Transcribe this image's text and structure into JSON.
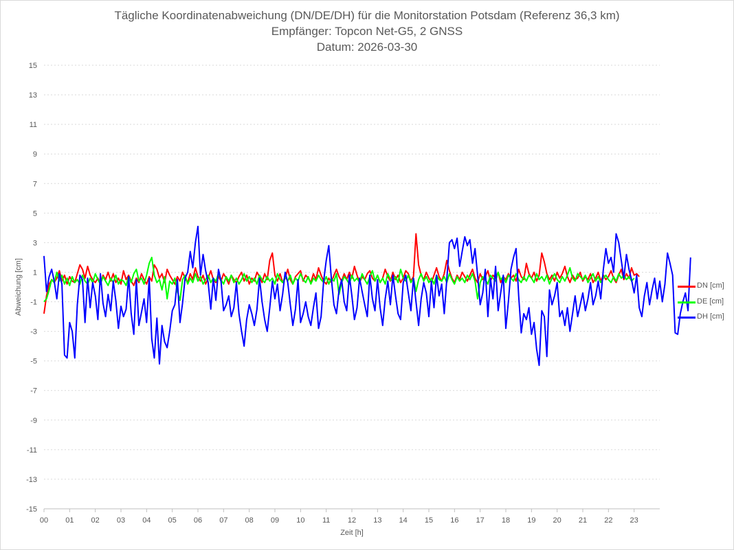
{
  "chart_data": {
    "type": "line",
    "title": "Tägliche Koordinatenabweichung (DN/DE/DH) für die Monitorstation Potsdam (Referenz 36,3 km)",
    "subtitle": "Empfänger: Topcon Net-G5, 2 GNSS",
    "date_line": "Datum: 2026-03-30",
    "xlabel": "Zeit [h]",
    "ylabel": "Abweichung [cm]",
    "xlim": [
      0,
      24
    ],
    "ylim": [
      -15,
      15
    ],
    "x_ticks": [
      "00",
      "01",
      "02",
      "03",
      "04",
      "05",
      "06",
      "07",
      "08",
      "09",
      "10",
      "11",
      "12",
      "13",
      "14",
      "15",
      "16",
      "17",
      "18",
      "19",
      "20",
      "21",
      "22",
      "23"
    ],
    "y_ticks": [
      "15",
      "13",
      "11",
      "9",
      "7",
      "5",
      "3",
      "1",
      "-1",
      "-3",
      "-5",
      "-7",
      "-9",
      "-11",
      "-13",
      "-15"
    ],
    "grid": true,
    "legend_position": "right",
    "x_step_h": 0.1,
    "series": [
      {
        "name": "DN [cm]",
        "color": "#ff0000",
        "values": [
          -1.8,
          -0.6,
          0.2,
          0.5,
          0.3,
          0.6,
          1.1,
          0.4,
          0.8,
          0.2,
          0.7,
          0.4,
          0.3,
          0.9,
          1.5,
          1.2,
          0.6,
          1.4,
          0.8,
          0.5,
          0.3,
          0.6,
          0.2,
          0.8,
          0.5,
          1.0,
          0.4,
          0.9,
          0.3,
          0.6,
          0.2,
          1.1,
          0.5,
          0.8,
          0.4,
          0.1,
          0.6,
          0.3,
          0.9,
          0.5,
          0.2,
          0.7,
          0.4,
          1.5,
          1.2,
          0.6,
          0.9,
          0.3,
          1.2,
          0.8,
          0.5,
          0.2,
          0.7,
          0.4,
          1.0,
          0.6,
          0.3,
          0.9,
          0.5,
          1.3,
          0.7,
          0.4,
          0.8,
          0.2,
          0.6,
          1.1,
          0.5,
          0.3,
          0.7,
          0.4,
          0.9,
          0.6,
          0.2,
          0.8,
          0.5,
          0.3,
          0.7,
          1.0,
          0.4,
          0.8,
          0.2,
          0.6,
          0.4,
          1.0,
          0.7,
          0.3,
          0.9,
          0.5,
          1.8,
          2.3,
          0.8,
          0.4,
          0.9,
          0.3,
          0.6,
          1.2,
          0.5,
          0.2,
          0.7,
          0.9,
          1.1,
          0.4,
          0.8,
          0.6,
          0.3,
          0.9,
          0.5,
          1.3,
          0.8,
          0.4,
          0.2,
          0.6,
          0.3,
          0.8,
          1.2,
          0.7,
          0.4,
          0.9,
          0.5,
          1.0,
          0.6,
          1.4,
          0.8,
          0.3,
          0.7,
          0.5,
          0.9,
          1.1,
          0.6,
          0.4,
          0.8,
          0.3,
          0.6,
          1.2,
          0.7,
          0.4,
          1.0,
          0.5,
          0.8,
          0.3,
          0.6,
          1.1,
          0.9,
          0.4,
          0.7,
          3.6,
          1.5,
          0.8,
          0.5,
          1.0,
          0.6,
          0.3,
          0.8,
          1.3,
          0.7,
          0.4,
          0.9,
          1.8,
          1.1,
          0.6,
          0.3,
          0.8,
          0.5,
          1.0,
          0.7,
          0.4,
          0.8,
          1.2,
          0.6,
          0.3,
          0.9,
          0.5,
          0.7,
          1.1,
          0.4,
          0.8,
          0.6,
          1.0,
          0.3,
          0.7,
          0.5,
          0.9,
          0.6,
          0.8,
          0.4,
          1.2,
          0.7,
          0.5,
          1.6,
          0.9,
          0.6,
          1.0,
          0.4,
          0.8,
          2.3,
          1.7,
          0.9,
          0.5,
          0.8,
          0.4,
          1.0,
          0.6,
          0.9,
          1.4,
          0.7,
          0.3,
          0.8,
          0.5,
          0.6,
          1.0,
          0.4,
          0.7,
          0.5,
          0.9,
          0.3,
          0.6,
          1.0,
          0.4,
          0.8,
          0.5,
          0.7,
          1.1,
          0.6,
          0.3,
          0.8,
          1.2,
          0.5,
          0.9,
          0.6,
          1.3,
          0.8,
          0.9,
          0.7
        ]
      },
      {
        "name": "DE [cm]",
        "color": "#00ff00",
        "values": [
          -1.0,
          -0.8,
          -0.2,
          0.5,
          0.3,
          1.0,
          0.4,
          0.8,
          0.2,
          0.6,
          0.1,
          0.7,
          0.3,
          0.5,
          0.2,
          0.8,
          0.4,
          0.2,
          0.6,
          0.3,
          0.9,
          0.5,
          0.2,
          0.7,
          0.4,
          0.1,
          0.6,
          0.3,
          0.8,
          0.2,
          0.5,
          0.4,
          0.1,
          0.7,
          0.3,
          0.9,
          1.2,
          0.4,
          0.6,
          0.2,
          0.8,
          1.6,
          2.0,
          0.8,
          0.3,
          0.5,
          -0.2,
          0.7,
          -0.8,
          0.4,
          0.2,
          0.6,
          -0.3,
          -0.9,
          0.5,
          0.8,
          0.2,
          0.6,
          0.3,
          0.9,
          0.4,
          0.7,
          0.2,
          0.5,
          0.8,
          0.3,
          0.6,
          0.4,
          0.9,
          0.5,
          0.2,
          0.7,
          0.4,
          0.8,
          0.3,
          0.6,
          0.2,
          0.5,
          0.9,
          0.4,
          0.7,
          0.3,
          0.6,
          0.2,
          0.8,
          0.5,
          0.3,
          0.7,
          0.4,
          0.6,
          0.2,
          0.9,
          0.5,
          0.3,
          0.7,
          0.4,
          0.8,
          0.2,
          0.6,
          0.4,
          0.9,
          0.5,
          0.3,
          0.7,
          0.2,
          0.6,
          0.4,
          0.8,
          0.5,
          0.3,
          0.7,
          0.2,
          0.6,
          0.4,
          0.9,
          -0.5,
          0.3,
          0.7,
          0.5,
          0.2,
          0.8,
          0.4,
          0.6,
          0.3,
          0.9,
          0.5,
          0.2,
          0.7,
          1.1,
          0.4,
          0.8,
          0.3,
          0.6,
          0.2,
          0.9,
          0.5,
          0.4,
          0.7,
          0.3,
          1.2,
          0.6,
          0.4,
          0.8,
          0.3,
          0.6,
          -0.3,
          0.5,
          0.9,
          0.4,
          0.7,
          0.3,
          0.6,
          0.2,
          0.8,
          0.5,
          0.4,
          0.7,
          0.3,
          0.9,
          0.5,
          0.2,
          0.7,
          0.4,
          0.6,
          0.3,
          0.8,
          0.5,
          0.9,
          0.4,
          -0.8,
          0.3,
          0.7,
          0.5,
          0.2,
          0.8,
          0.6,
          0.4,
          1.0,
          0.5,
          0.7,
          0.3,
          0.8,
          0.6,
          0.4,
          0.9,
          0.5,
          0.3,
          0.7,
          0.4,
          0.8,
          0.6,
          0.3,
          0.9,
          0.5,
          0.7,
          0.4,
          0.8,
          0.2,
          0.6,
          0.9,
          0.5,
          0.3,
          0.7,
          0.4,
          0.8,
          1.3,
          0.6,
          0.4,
          0.9,
          0.7,
          0.5,
          0.8,
          0.3,
          0.6,
          0.9,
          0.4,
          0.7,
          0.3,
          0.6,
          0.8,
          0.5,
          0.3,
          0.7,
          0.4,
          0.9,
          0.6,
          0.8,
          0.5,
          0.7,
          0.4,
          0.6
        ]
      },
      {
        "name": "DH [cm]",
        "color": "#0000ff",
        "values": [
          2.1,
          -0.3,
          0.7,
          1.2,
          0.4,
          -0.8,
          0.9,
          0.2,
          -4.6,
          -4.8,
          -2.4,
          -3.0,
          -4.8,
          -1.2,
          0.8,
          0.5,
          -2.4,
          0.6,
          -1.4,
          0.3,
          -0.6,
          -2.2,
          0.9,
          -1.1,
          -2.0,
          -0.5,
          -1.6,
          0.4,
          -0.9,
          -2.8,
          -1.3,
          -2.0,
          -1.5,
          0.7,
          -1.8,
          -3.2,
          0.5,
          -2.6,
          -1.7,
          -0.8,
          -2.4,
          0.6,
          -3.5,
          -4.8,
          -2.1,
          -5.2,
          -2.6,
          -3.7,
          -4.1,
          -3.0,
          -1.6,
          -1.2,
          0.5,
          -2.4,
          -1.1,
          0.6,
          1.0,
          2.4,
          1.3,
          3.0,
          4.1,
          0.8,
          2.2,
          1.1,
          0.3,
          -1.5,
          0.6,
          -0.9,
          1.2,
          0.4,
          -1.6,
          -1.2,
          -0.6,
          -2.0,
          -1.4,
          0.3,
          -1.8,
          -3.0,
          -4.0,
          -2.2,
          -1.2,
          -1.8,
          -2.6,
          -1.5,
          0.6,
          -1.0,
          -2.2,
          -3.0,
          -1.4,
          0.4,
          -0.8,
          0.2,
          -1.6,
          -0.5,
          1.0,
          0.3,
          -1.2,
          -2.6,
          -1.5,
          0.5,
          -2.4,
          -1.8,
          -1.0,
          -2.0,
          -2.6,
          -1.4,
          -0.4,
          -2.8,
          -2.0,
          0.4,
          1.8,
          2.8,
          0.6,
          -1.2,
          -1.8,
          -0.2,
          0.5,
          -1.0,
          -1.6,
          0.8,
          -0.6,
          -2.2,
          -1.4,
          0.6,
          -0.3,
          -1.2,
          -2.0,
          0.8,
          -0.8,
          -1.6,
          0.5,
          -1.4,
          -2.6,
          -0.8,
          0.4,
          -1.2,
          0.8,
          -0.6,
          -1.8,
          -2.2,
          0.3,
          0.8,
          -0.4,
          -1.6,
          0.6,
          -1.0,
          -2.6,
          -0.8,
          0.3,
          -0.4,
          -2.0,
          0.4,
          -1.4,
          0.8,
          -0.6,
          0.2,
          -1.8,
          0.5,
          3.0,
          3.2,
          2.6,
          3.3,
          1.4,
          2.4,
          3.4,
          2.8,
          3.2,
          1.6,
          2.6,
          0.8,
          -1.2,
          -0.4,
          1.2,
          -2.0,
          0.6,
          -0.8,
          1.4,
          -1.6,
          -0.4,
          0.8,
          -2.8,
          -1.0,
          1.2,
          2.0,
          2.6,
          -0.6,
          -3.1,
          -1.8,
          -2.2,
          -1.4,
          -3.2,
          -2.4,
          -4.2,
          -5.3,
          -1.6,
          -2.0,
          -4.7,
          -0.2,
          -1.2,
          -0.6,
          0.3,
          -2.0,
          -1.6,
          -2.6,
          -1.4,
          -3.0,
          -1.8,
          -0.6,
          -2.0,
          -1.2,
          -0.4,
          -1.6,
          -0.8,
          0.3,
          -1.2,
          -0.6,
          0.4,
          -0.8,
          1.2,
          2.6,
          1.6,
          2.0,
          1.0,
          3.6,
          3.0,
          1.8,
          0.6,
          2.2,
          1.2,
          0.5,
          -0.4,
          0.8,
          -1.4,
          -2.0,
          -0.6,
          0.3,
          -1.2,
          -0.2,
          0.6,
          -0.8,
          0.4,
          -1.0,
          0.2,
          2.3,
          1.6,
          0.8,
          -3.1,
          -3.2,
          -1.8,
          -1.0,
          -0.4,
          -1.6,
          2.0
        ]
      }
    ]
  }
}
